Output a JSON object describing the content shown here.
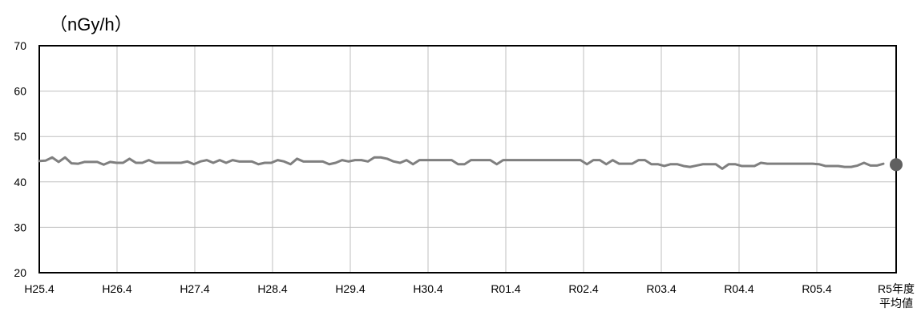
{
  "chart_data": {
    "type": "line",
    "unit_label": "（nGy/h）",
    "y_ticks": [
      "20",
      "30",
      "40",
      "50",
      "60",
      "70"
    ],
    "x_tick_labels": [
      "H25.4",
      "H26.4",
      "H27.4",
      "H28.4",
      "H29.4",
      "H30.4",
      "R01.4",
      "R02.4",
      "R03.4",
      "R04.4",
      "R05.4"
    ],
    "average_label": [
      "R5年度",
      "平均値"
    ],
    "ylim": [
      20,
      70
    ],
    "grid": true,
    "series": [
      {
        "values": [
          44.6,
          44.7,
          45.4,
          44.4,
          45.4,
          44.1,
          44.0,
          44.4,
          44.4,
          44.4,
          43.8,
          44.4,
          44.2,
          44.2,
          45.1,
          44.2,
          44.2,
          44.8,
          44.2,
          44.2,
          44.2,
          44.2,
          44.2,
          44.5,
          43.9,
          44.5,
          44.8,
          44.2,
          44.8,
          44.2,
          44.8,
          44.5,
          44.5,
          44.5,
          43.9,
          44.2,
          44.2,
          44.8,
          44.5,
          43.9,
          45.1,
          44.5,
          44.5,
          44.5,
          44.5,
          43.9,
          44.2,
          44.8,
          44.5,
          44.8,
          44.8,
          44.5,
          45.4,
          45.4,
          45.1,
          44.5,
          44.2,
          44.8,
          43.9,
          44.8,
          44.8,
          44.8,
          44.8,
          44.8,
          44.8,
          43.9,
          43.9,
          44.8,
          44.8,
          44.8,
          44.8,
          43.9,
          44.8,
          44.8,
          44.8,
          44.8,
          44.8,
          44.8,
          44.8,
          44.8,
          44.8,
          44.8,
          44.8,
          44.8,
          44.8,
          43.9,
          44.8,
          44.8,
          43.9,
          44.8,
          44.0,
          44.0,
          44.0,
          44.8,
          44.8,
          43.9,
          43.9,
          43.5,
          43.9,
          43.9,
          43.5,
          43.3,
          43.6,
          43.9,
          43.9,
          43.9,
          42.9,
          43.9,
          43.9,
          43.5,
          43.5,
          43.5,
          44.2,
          44.0,
          44.0,
          44.0,
          44.0,
          44.0,
          44.0,
          44.0,
          44.0,
          43.9,
          43.5,
          43.5,
          43.5,
          43.3,
          43.3,
          43.6,
          44.2,
          43.6,
          43.6,
          44.0
        ],
        "color": "#7f7f7f"
      }
    ],
    "average": {
      "value": 43.8,
      "color": "#606060"
    },
    "colors": {
      "grid": "#bfbfbf",
      "frame": "#000000",
      "text": "#000000"
    }
  }
}
